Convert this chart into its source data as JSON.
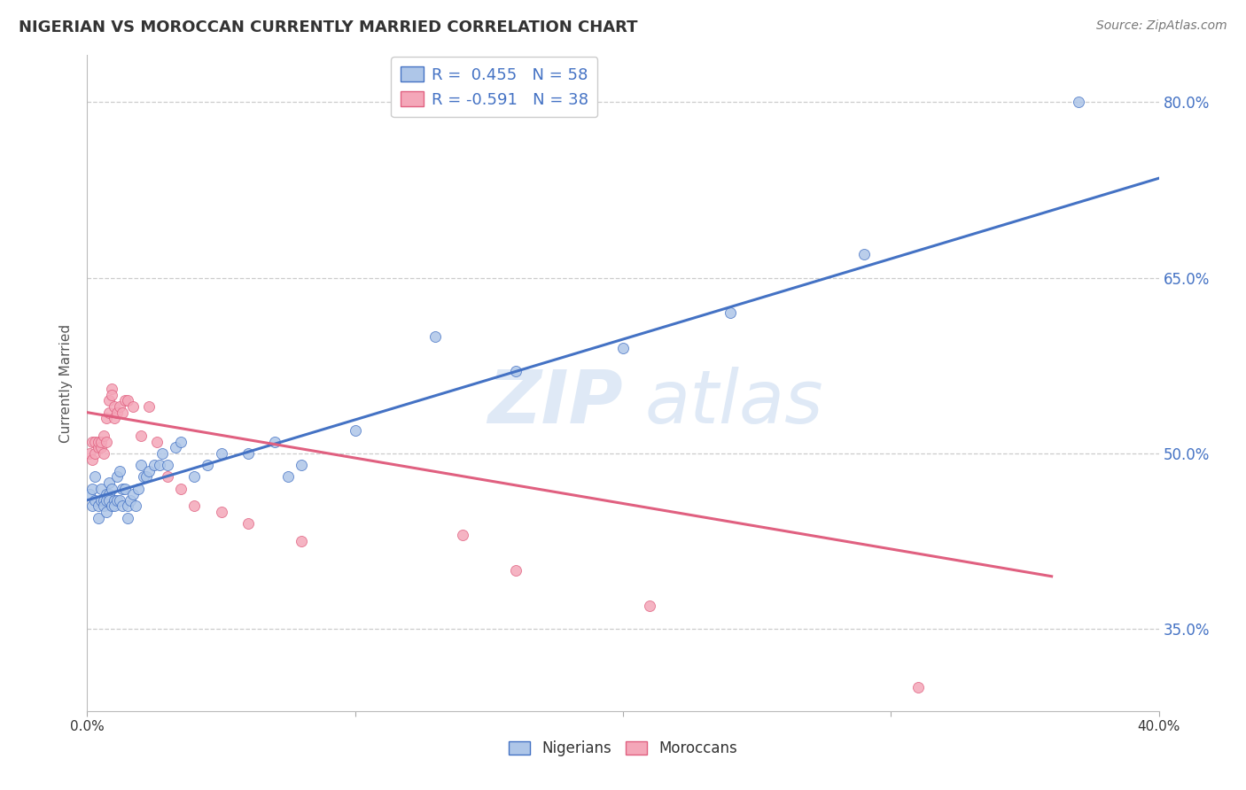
{
  "title": "NIGERIAN VS MOROCCAN CURRENTLY MARRIED CORRELATION CHART",
  "source": "Source: ZipAtlas.com",
  "ylabel": "Currently Married",
  "xlim": [
    0.0,
    0.4
  ],
  "ylim": [
    0.28,
    0.84
  ],
  "xticks": [
    0.0,
    0.1,
    0.2,
    0.3,
    0.4
  ],
  "xtick_labels": [
    "0.0%",
    "",
    "",
    "",
    "40.0%"
  ],
  "ytick_labels_right": [
    "80.0%",
    "65.0%",
    "50.0%",
    "35.0%"
  ],
  "ytick_values_right": [
    0.8,
    0.65,
    0.5,
    0.35
  ],
  "nigerian_color": "#aec6e8",
  "moroccan_color": "#f4a7b9",
  "nigerian_line_color": "#4472c4",
  "moroccan_line_color": "#e06080",
  "nigerian_R": 0.455,
  "nigerian_N": 58,
  "moroccan_R": -0.591,
  "moroccan_N": 38,
  "nig_line_x0": 0.0,
  "nig_line_y0": 0.46,
  "nig_line_x1": 0.4,
  "nig_line_y1": 0.735,
  "mor_line_x0": 0.0,
  "mor_line_y0": 0.535,
  "mor_line_x1": 0.36,
  "mor_line_y1": 0.395,
  "nigerian_x": [
    0.001,
    0.002,
    0.002,
    0.003,
    0.003,
    0.004,
    0.004,
    0.005,
    0.005,
    0.006,
    0.006,
    0.007,
    0.007,
    0.007,
    0.008,
    0.008,
    0.008,
    0.009,
    0.009,
    0.01,
    0.01,
    0.011,
    0.011,
    0.012,
    0.012,
    0.013,
    0.013,
    0.014,
    0.015,
    0.015,
    0.016,
    0.017,
    0.018,
    0.019,
    0.02,
    0.021,
    0.022,
    0.023,
    0.025,
    0.027,
    0.028,
    0.03,
    0.033,
    0.035,
    0.04,
    0.045,
    0.05,
    0.06,
    0.07,
    0.075,
    0.08,
    0.1,
    0.13,
    0.16,
    0.2,
    0.24,
    0.29,
    0.37
  ],
  "nigerian_y": [
    0.465,
    0.47,
    0.455,
    0.48,
    0.46,
    0.455,
    0.445,
    0.46,
    0.47,
    0.46,
    0.455,
    0.45,
    0.465,
    0.46,
    0.465,
    0.475,
    0.46,
    0.455,
    0.47,
    0.46,
    0.455,
    0.46,
    0.48,
    0.485,
    0.46,
    0.47,
    0.455,
    0.47,
    0.455,
    0.445,
    0.46,
    0.465,
    0.455,
    0.47,
    0.49,
    0.48,
    0.48,
    0.485,
    0.49,
    0.49,
    0.5,
    0.49,
    0.505,
    0.51,
    0.48,
    0.49,
    0.5,
    0.5,
    0.51,
    0.48,
    0.49,
    0.52,
    0.6,
    0.57,
    0.59,
    0.62,
    0.67,
    0.8
  ],
  "moroccan_x": [
    0.001,
    0.002,
    0.002,
    0.003,
    0.003,
    0.004,
    0.004,
    0.005,
    0.005,
    0.006,
    0.006,
    0.007,
    0.007,
    0.008,
    0.008,
    0.009,
    0.009,
    0.01,
    0.01,
    0.011,
    0.012,
    0.013,
    0.014,
    0.015,
    0.017,
    0.02,
    0.023,
    0.026,
    0.03,
    0.035,
    0.04,
    0.05,
    0.06,
    0.08,
    0.14,
    0.16,
    0.21,
    0.31
  ],
  "moroccan_y": [
    0.5,
    0.51,
    0.495,
    0.51,
    0.5,
    0.505,
    0.51,
    0.505,
    0.51,
    0.5,
    0.515,
    0.51,
    0.53,
    0.545,
    0.535,
    0.555,
    0.55,
    0.54,
    0.53,
    0.535,
    0.54,
    0.535,
    0.545,
    0.545,
    0.54,
    0.515,
    0.54,
    0.51,
    0.48,
    0.47,
    0.455,
    0.45,
    0.44,
    0.425,
    0.43,
    0.4,
    0.37,
    0.3
  ]
}
